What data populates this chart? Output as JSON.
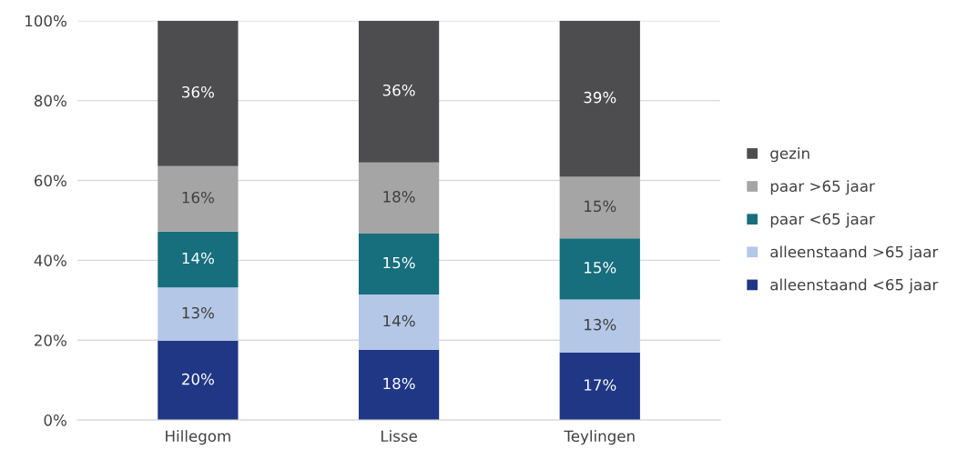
{
  "chart_data": {
    "type": "bar",
    "stacked": true,
    "categories": [
      "Hillegom",
      "Lisse",
      "Teylingen"
    ],
    "series": [
      {
        "name": "alleenstaand <65 jaar",
        "color": "#1f3784",
        "values": [
          19.8,
          17.6,
          16.9
        ],
        "value_labels": [
          "20%",
          "18%",
          "17%"
        ]
      },
      {
        "name": "alleenstaand >65 jaar",
        "color": "#b4c7e7",
        "values": [
          13.4,
          13.8,
          13.3
        ],
        "value_labels": [
          "13%",
          "14%",
          "13%"
        ]
      },
      {
        "name": "paar <65 jaar",
        "color": "#176e7d",
        "values": [
          14.0,
          15.3,
          15.3
        ],
        "value_labels": [
          "14%",
          "15%",
          "15%"
        ]
      },
      {
        "name": "paar >65 jaar",
        "color": "#a5a5a5",
        "values": [
          16.4,
          17.8,
          15.4
        ],
        "value_labels": [
          "16%",
          "18%",
          "15%"
        ]
      },
      {
        "name": "gezin",
        "color": "#4d4d4f",
        "values": [
          36.4,
          35.5,
          39.1
        ],
        "value_labels": [
          "36%",
          "36%",
          "39%"
        ]
      }
    ],
    "ylim": [
      0,
      100
    ],
    "yticks": [
      {
        "value": 0,
        "label": "0%"
      },
      {
        "value": 20,
        "label": "20%"
      },
      {
        "value": 40,
        "label": "40%"
      },
      {
        "value": 60,
        "label": "60%"
      },
      {
        "value": 80,
        "label": "80%"
      },
      {
        "value": 100,
        "label": "100%"
      }
    ],
    "grid": "y",
    "legend": "right"
  }
}
